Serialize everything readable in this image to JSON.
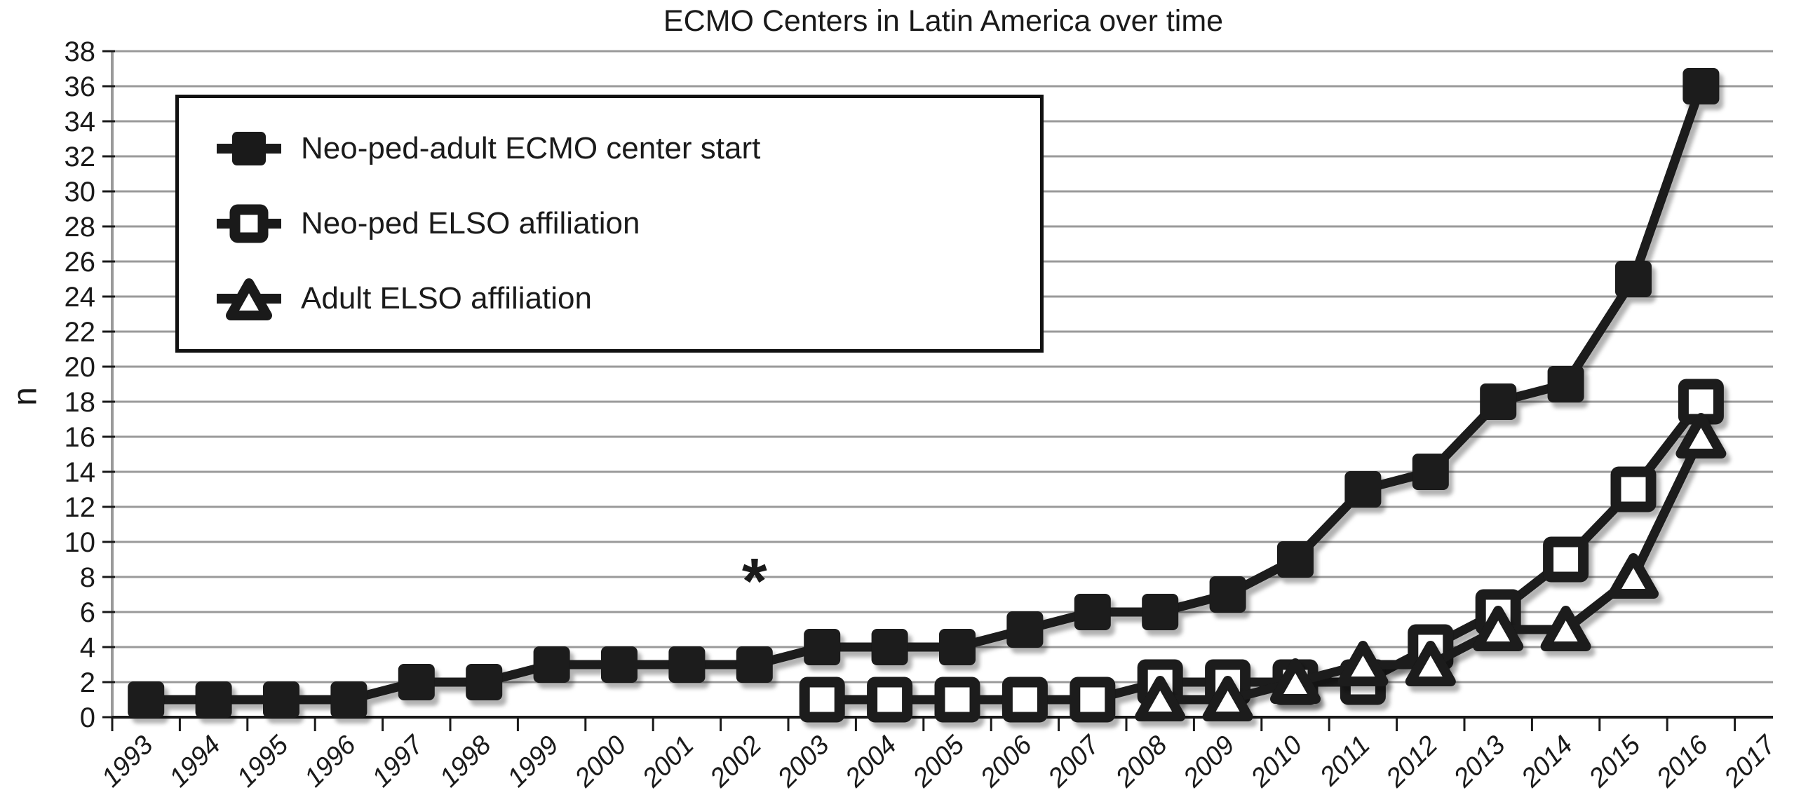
{
  "page": {
    "title": "ECMO Centers in Latin America over time"
  },
  "chart_data": {
    "type": "line",
    "title": "ECMO Centers in Latin America over time",
    "xlabel": "",
    "ylabel": "n",
    "ylim": [
      0,
      38
    ],
    "y_ticks": [
      0,
      2,
      4,
      6,
      8,
      10,
      12,
      14,
      16,
      18,
      20,
      22,
      24,
      26,
      28,
      30,
      32,
      34,
      36,
      38
    ],
    "grid": "horizontal",
    "legend_position": "upper-left-inside",
    "categories": [
      "1993",
      "1994",
      "1995",
      "1996",
      "1997",
      "1998",
      "1999",
      "2000",
      "2001",
      "2002",
      "2003",
      "2004",
      "2005",
      "2006",
      "2007",
      "2008",
      "2009",
      "2010",
      "2011",
      "2012",
      "2013",
      "2014",
      "2015",
      "2016",
      "2017"
    ],
    "series": [
      {
        "name": "Neo-ped-adult ECMO center start",
        "marker": "filled-square",
        "color": "#1a1a1a",
        "values": [
          1,
          1,
          1,
          1,
          2,
          2,
          3,
          3,
          3,
          3,
          4,
          4,
          4,
          5,
          6,
          6,
          7,
          9,
          13,
          14,
          18,
          19,
          25,
          36,
          null
        ]
      },
      {
        "name": "Neo-ped ELSO affiliation",
        "marker": "open-square",
        "color": "#1a1a1a",
        "values": [
          null,
          null,
          null,
          null,
          null,
          null,
          null,
          null,
          null,
          null,
          1,
          1,
          1,
          1,
          1,
          2,
          2,
          2,
          2,
          4,
          6,
          9,
          13,
          18,
          null
        ]
      },
      {
        "name": "Adult ELSO affiliation",
        "marker": "open-triangle",
        "color": "#1a1a1a",
        "values": [
          null,
          null,
          null,
          null,
          null,
          null,
          null,
          null,
          null,
          null,
          null,
          null,
          null,
          null,
          null,
          1,
          1,
          2,
          3,
          3,
          5,
          5,
          8,
          16,
          null
        ]
      }
    ],
    "annotations": [
      {
        "category": "2002",
        "value": 8.5,
        "text": "*"
      }
    ],
    "colors": {
      "line": "#1a1a1a",
      "gridline": "#9a9a9a",
      "axis": "#1a1a1a",
      "background": "#ffffff"
    }
  }
}
